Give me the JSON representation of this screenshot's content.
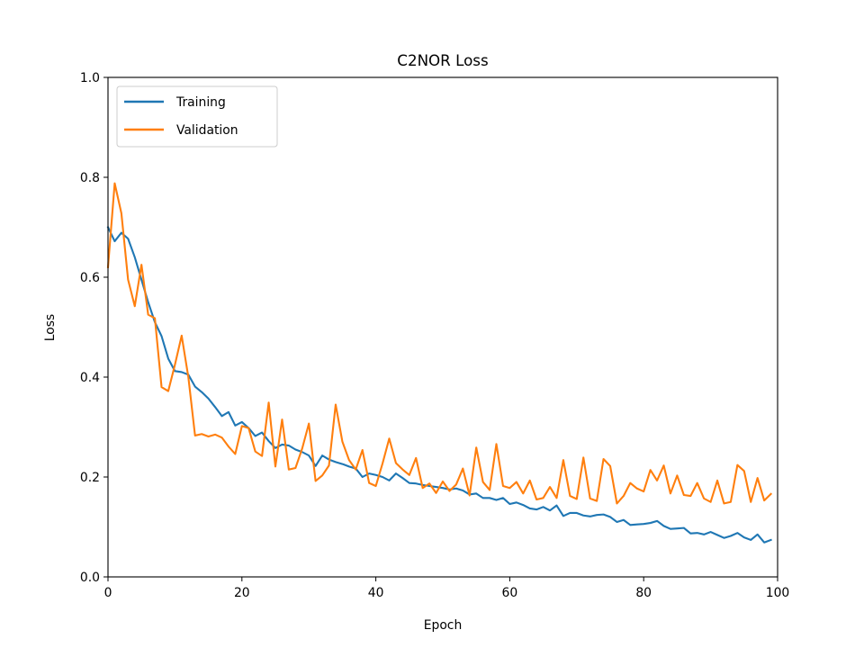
{
  "chart_data": {
    "type": "line",
    "title": "C2NOR Loss",
    "xlabel": "Epoch",
    "ylabel": "Loss",
    "xlim": [
      0,
      100
    ],
    "ylim": [
      0,
      1.0
    ],
    "xticks": [
      0,
      20,
      40,
      60,
      80,
      100
    ],
    "yticks": [
      0.0,
      0.2,
      0.4,
      0.6,
      0.8,
      1.0
    ],
    "ytick_labels": [
      "0.0",
      "0.2",
      "0.4",
      "0.6",
      "0.8",
      "1.0"
    ],
    "grid": false,
    "legend_position": "top-left",
    "series": [
      {
        "name": "Training",
        "color": "#1f77b4",
        "x": [
          0,
          1,
          2,
          3,
          4,
          5,
          6,
          7,
          8,
          9,
          10,
          11,
          12,
          13,
          14,
          15,
          16,
          17,
          18,
          19,
          20,
          21,
          22,
          23,
          24,
          25,
          26,
          27,
          28,
          29,
          30,
          31,
          32,
          33,
          34,
          35,
          36,
          37,
          38,
          39,
          40,
          41,
          42,
          43,
          44,
          45,
          46,
          47,
          48,
          49,
          50,
          51,
          52,
          53,
          54,
          55,
          56,
          57,
          58,
          59,
          60,
          61,
          62,
          63,
          64,
          65,
          66,
          67,
          68,
          69,
          70,
          71,
          72,
          73,
          74,
          75,
          76,
          77,
          78,
          79,
          80,
          81,
          82,
          83,
          84,
          85,
          86,
          87,
          88,
          89,
          90,
          91,
          92,
          93,
          94,
          95,
          96,
          97,
          98,
          99
        ],
        "values": [
          0.7,
          0.672,
          0.689,
          0.677,
          0.64,
          0.595,
          0.55,
          0.51,
          0.482,
          0.437,
          0.412,
          0.41,
          0.405,
          0.381,
          0.37,
          0.357,
          0.34,
          0.322,
          0.33,
          0.303,
          0.31,
          0.298,
          0.282,
          0.289,
          0.272,
          0.258,
          0.265,
          0.263,
          0.255,
          0.25,
          0.243,
          0.222,
          0.243,
          0.235,
          0.23,
          0.226,
          0.221,
          0.217,
          0.2,
          0.207,
          0.204,
          0.2,
          0.193,
          0.207,
          0.198,
          0.188,
          0.187,
          0.184,
          0.182,
          0.18,
          0.178,
          0.175,
          0.177,
          0.173,
          0.165,
          0.167,
          0.158,
          0.158,
          0.154,
          0.158,
          0.146,
          0.149,
          0.144,
          0.137,
          0.135,
          0.14,
          0.133,
          0.143,
          0.122,
          0.128,
          0.128,
          0.123,
          0.121,
          0.124,
          0.125,
          0.12,
          0.11,
          0.114,
          0.104,
          0.105,
          0.106,
          0.108,
          0.112,
          0.102,
          0.096,
          0.097,
          0.098,
          0.087,
          0.088,
          0.085,
          0.09,
          0.084,
          0.078,
          0.082,
          0.088,
          0.079,
          0.074,
          0.085,
          0.069,
          0.074
        ]
      },
      {
        "name": "Validation",
        "color": "#ff7f0e",
        "x": [
          0,
          1,
          2,
          3,
          4,
          5,
          6,
          7,
          8,
          9,
          10,
          11,
          12,
          13,
          14,
          15,
          16,
          17,
          18,
          19,
          20,
          21,
          22,
          23,
          24,
          25,
          26,
          27,
          28,
          29,
          30,
          31,
          32,
          33,
          34,
          35,
          36,
          37,
          38,
          39,
          40,
          41,
          42,
          43,
          44,
          45,
          46,
          47,
          48,
          49,
          50,
          51,
          52,
          53,
          54,
          55,
          56,
          57,
          58,
          59,
          60,
          61,
          62,
          63,
          64,
          65,
          66,
          67,
          68,
          69,
          70,
          71,
          72,
          73,
          74,
          75,
          76,
          77,
          78,
          79,
          80,
          81,
          82,
          83,
          84,
          85,
          86,
          87,
          88,
          89,
          90,
          91,
          92,
          93,
          94,
          95,
          96,
          97,
          98,
          99
        ],
        "values": [
          0.62,
          0.788,
          0.728,
          0.595,
          0.542,
          0.625,
          0.525,
          0.518,
          0.38,
          0.372,
          0.425,
          0.483,
          0.4,
          0.283,
          0.286,
          0.281,
          0.285,
          0.279,
          0.261,
          0.246,
          0.302,
          0.298,
          0.251,
          0.242,
          0.349,
          0.221,
          0.315,
          0.215,
          0.218,
          0.257,
          0.307,
          0.192,
          0.203,
          0.223,
          0.345,
          0.271,
          0.234,
          0.215,
          0.254,
          0.188,
          0.182,
          0.227,
          0.277,
          0.228,
          0.215,
          0.204,
          0.238,
          0.178,
          0.187,
          0.168,
          0.191,
          0.172,
          0.185,
          0.217,
          0.163,
          0.259,
          0.19,
          0.174,
          0.266,
          0.182,
          0.178,
          0.19,
          0.167,
          0.193,
          0.155,
          0.158,
          0.18,
          0.158,
          0.234,
          0.162,
          0.156,
          0.239,
          0.157,
          0.152,
          0.236,
          0.222,
          0.147,
          0.162,
          0.188,
          0.177,
          0.171,
          0.214,
          0.193,
          0.223,
          0.167,
          0.203,
          0.164,
          0.162,
          0.188,
          0.157,
          0.15,
          0.193,
          0.147,
          0.15,
          0.224,
          0.212,
          0.15,
          0.198,
          0.153,
          0.166
        ]
      }
    ]
  }
}
